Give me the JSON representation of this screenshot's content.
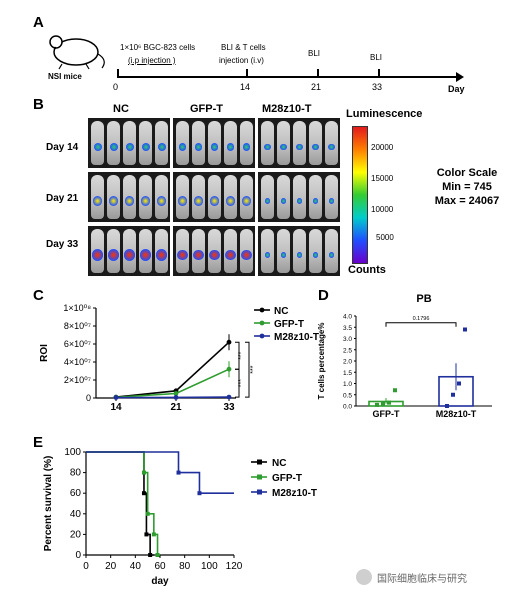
{
  "panels": {
    "A": "A",
    "B": "B",
    "C": "C",
    "D": "D",
    "E": "E"
  },
  "timeline": {
    "mouse_label": "NSI mice",
    "event1_line1": "1×10⁶ BGC-823 cells",
    "event1_line2": "(i.p injection )",
    "event2_line1": "BLI & T cells",
    "event2_line2": "injection (i.v)",
    "event3": "BLI",
    "event4": "BLI",
    "ticks": [
      "0",
      "14",
      "21",
      "33"
    ],
    "axis_label": "Day"
  },
  "imaging": {
    "groups": [
      "NC",
      "GFP-T",
      "M28z10-T"
    ],
    "days": [
      "Day 14",
      "Day 21",
      "Day 33"
    ],
    "colorbar_title": "Luminescence",
    "colorbar_ticks": [
      "20000",
      "15000",
      "10000",
      "5000"
    ],
    "colorbar_bottom": "Counts",
    "scale_title": "Color Scale",
    "scale_min": "Min = 745",
    "scale_max": "Max = 24067",
    "intensity": [
      [
        0.5,
        0.45,
        0.35
      ],
      [
        0.7,
        0.65,
        0.2
      ],
      [
        0.95,
        0.8,
        0.15
      ]
    ]
  },
  "chart_data": [
    {
      "type": "line",
      "panel": "C",
      "xlabel": "day",
      "ylabel": "ROI",
      "x": [
        14,
        21,
        33
      ],
      "x_ticks": [
        "14",
        "21",
        "33"
      ],
      "y_ticks": [
        "1×10⁰⁸",
        "8×10⁰⁷",
        "6×10⁰⁷",
        "4×10⁰⁷",
        "2×10⁰⁷",
        "0"
      ],
      "ylim": [
        0,
        100000000
      ],
      "series": [
        {
          "name": "NC",
          "color": "#000000",
          "values": [
            1000000,
            8000000,
            62000000
          ]
        },
        {
          "name": "GFP-T",
          "color": "#2e9c2e",
          "values": [
            800000,
            5000000,
            32000000
          ]
        },
        {
          "name": "M28z10-T",
          "color": "#1f2f9c",
          "values": [
            500000,
            600000,
            1000000
          ]
        }
      ],
      "annotations": [
        "***",
        "***",
        "***"
      ]
    },
    {
      "type": "bar",
      "panel": "D",
      "title": "PB",
      "ylabel": "T cells percentage%",
      "categories": [
        "GFP-T",
        "M28z10-T"
      ],
      "values": [
        0.2,
        1.3
      ],
      "y_ticks": [
        "4.0",
        "3.5",
        "3.0",
        "2.5",
        "2.0",
        "1.5",
        "1.0",
        "0.5",
        "0.0"
      ],
      "ylim": [
        0,
        4
      ],
      "p_value": "0.1796",
      "points": [
        [
          0.05,
          0.1,
          0.15,
          0.7
        ],
        [
          0.0,
          0.5,
          1.0,
          3.4
        ]
      ]
    },
    {
      "type": "line",
      "panel": "E",
      "xlabel": "day",
      "ylabel": "Percent survival (%)",
      "x_ticks": [
        "0",
        "20",
        "40",
        "60",
        "80",
        "100",
        "120"
      ],
      "y_ticks": [
        "100",
        "80",
        "60",
        "40",
        "20",
        "0"
      ],
      "xlim": [
        0,
        120
      ],
      "ylim": [
        0,
        100
      ],
      "series": [
        {
          "name": "NC",
          "color": "#000000",
          "steps": [
            [
              0,
              100
            ],
            [
              47,
              100
            ],
            [
              47,
              60
            ],
            [
              49,
              60
            ],
            [
              49,
              20
            ],
            [
              52,
              20
            ],
            [
              52,
              0
            ],
            [
              55,
              0
            ]
          ]
        },
        {
          "name": "GFP-T",
          "color": "#2e9c2e",
          "steps": [
            [
              0,
              100
            ],
            [
              47,
              100
            ],
            [
              47,
              80
            ],
            [
              50,
              80
            ],
            [
              50,
              40
            ],
            [
              55,
              40
            ],
            [
              55,
              20
            ],
            [
              58,
              20
            ],
            [
              58,
              0
            ],
            [
              60,
              0
            ]
          ]
        },
        {
          "name": "M28z10-T",
          "color": "#1f2f9c",
          "steps": [
            [
              0,
              100
            ],
            [
              75,
              100
            ],
            [
              75,
              80
            ],
            [
              92,
              80
            ],
            [
              92,
              60
            ],
            [
              120,
              60
            ]
          ]
        }
      ]
    }
  ],
  "watermark": "国际细胞临床与研究"
}
